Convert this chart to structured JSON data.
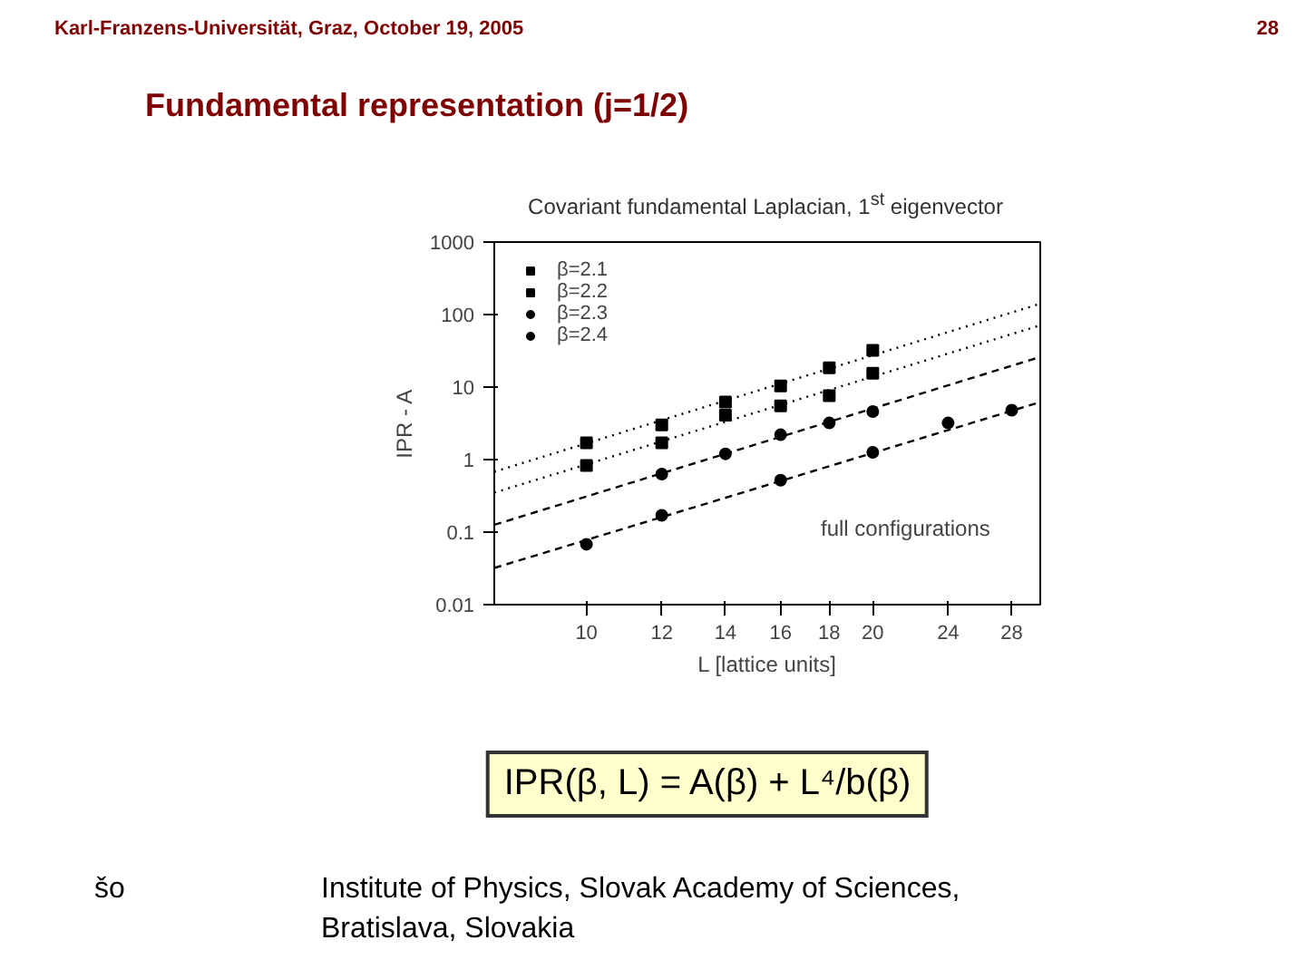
{
  "chart_data": {
    "type": "scatter",
    "title": "Fundamental representation (j=1/2)",
    "subtitle": "Covariant fundamental Laplacian, 1$^{st}$ eigenvector",
    "xlabel": "L [lattice units]",
    "ylabel": "IPR - A",
    "log": "xy",
    "xlim": [
      8,
      30
    ],
    "ylim": [
      0.01,
      1000
    ],
    "xticks": [
      10,
      12,
      14,
      16,
      18,
      20,
      24,
      28
    ],
    "yticks": [
      {
        "value": 0.01,
        "label": "0.01"
      },
      {
        "value": 0.1,
        "label": "0.1"
      },
      1,
      10,
      100,
      1000
    ],
    "legend": "top left",
    "grid": false,
    "series": [
      {
        "name": "β=2.1",
        "color": "#000000",
        "marker": "square",
        "x": [
          10,
          12,
          14,
          16,
          18,
          20
        ],
        "values": [
          1.7,
          3.0,
          6.2,
          10.4,
          18.5,
          32
        ]
      },
      {
        "name": "β=2.2",
        "color": "#000000",
        "marker": "square",
        "x": [
          10,
          12,
          14,
          16,
          18,
          20
        ],
        "values": [
          0.83,
          1.7,
          4.1,
          5.5,
          7.6,
          15.5
        ]
      },
      {
        "name": "β=2.3",
        "color": "#000000",
        "marker": "circle",
        "x": [
          12,
          14,
          16,
          18,
          20
        ],
        "values": [
          0.63,
          1.2,
          2.2,
          3.2,
          4.6
        ]
      },
      {
        "name": "β=2.4",
        "color": "#000000",
        "marker": "circle",
        "x": [
          10,
          12,
          16,
          20,
          24,
          28
        ],
        "values": [
          0.068,
          0.17,
          0.52,
          1.26,
          3.2,
          4.8
        ]
      },
      {
        "type": "line",
        "line_style": "dotted",
        "color": "#000000",
        "x": [
          8,
          30
        ],
        "values": [
          0.68,
          141
        ]
      },
      {
        "type": "line",
        "line_style": "dotted",
        "color": "#000000",
        "x": [
          8,
          30
        ],
        "values": [
          0.35,
          71
        ]
      },
      {
        "type": "line",
        "line_style": "dashed",
        "color": "#000000",
        "x": [
          8,
          30
        ],
        "values": [
          0.126,
          26
        ]
      },
      {
        "type": "line",
        "line_style": "dashed",
        "color": "#000000",
        "x": [
          8,
          30
        ],
        "values": [
          0.032,
          6.2
        ]
      }
    ],
    "annotations": [
      "full configurations",
      "Karl-Franzens-Universität, Graz, October 19, 2005",
      "28",
      "IPR(β, L) = A(β) + L⁴/b(β)",
      "šo",
      "Institute of Physics, Slovak Academy of Sciences,",
      "Bratislava, Slovakia"
    ]
  }
}
